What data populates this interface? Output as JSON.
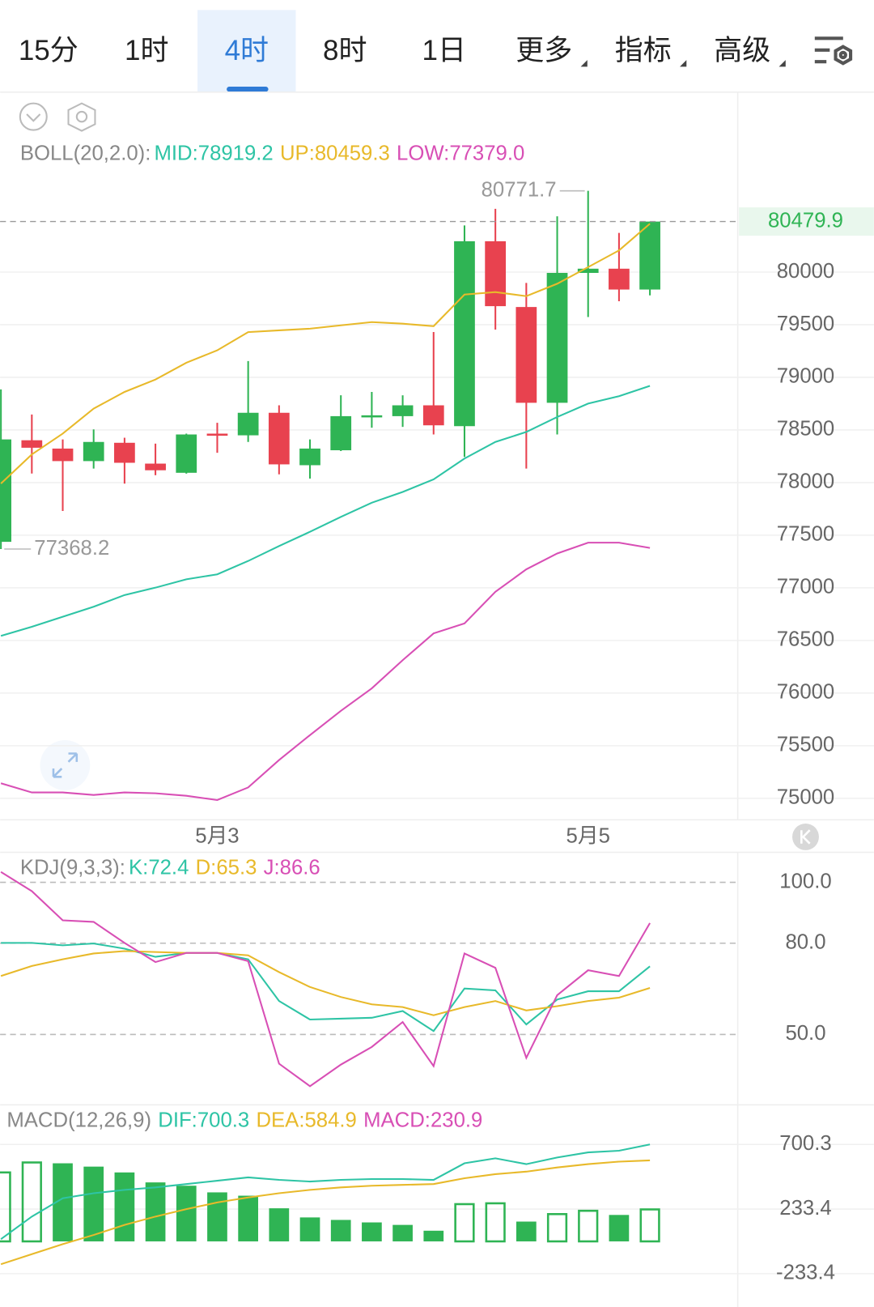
{
  "tabs": [
    "15分",
    "1时",
    "4时",
    "8时",
    "1日",
    "更多",
    "指标",
    "高级"
  ],
  "chart_data": [
    {
      "type": "candlestick",
      "indicator": "BOLL(20,2.0):",
      "categories": [
        null,
        null,
        null,
        null,
        null,
        null,
        null,
        "5月3",
        null,
        null,
        null,
        null,
        null,
        null,
        null,
        null,
        null,
        null,
        null,
        "5月5",
        null,
        null
      ],
      "open": [
        77437,
        78402,
        78323,
        78204,
        78378,
        78180,
        78093,
        78465,
        78449,
        78663,
        78165,
        78307,
        78631,
        78631,
        78734,
        78536,
        80293,
        79668,
        78758,
        79992,
        80032,
        79834
      ],
      "high": [
        78885,
        78647,
        78410,
        78505,
        78426,
        78370,
        78465,
        78568,
        79154,
        78734,
        78410,
        78829,
        78861,
        78829,
        79430,
        80443,
        80601,
        79897,
        80530,
        80771.7,
        80372,
        80480
      ],
      "low": [
        77368.2,
        78086,
        77730,
        78133,
        77990,
        78070,
        78085,
        78283,
        78386,
        78078,
        78038,
        78299,
        78521,
        78529,
        78457,
        78244,
        79454,
        78133,
        78457,
        79573,
        79723,
        79779
      ],
      "close": [
        78410,
        78331,
        78204,
        78386,
        78188,
        78117,
        78457,
        78457,
        78663,
        78173,
        78323,
        78631,
        78639,
        78734,
        78544,
        80293,
        79676,
        78758,
        79992,
        80032,
        79834,
        80479.9
      ],
      "up_color": "#2fb454",
      "down_color": "#e8424f",
      "series": [
        {
          "name": "MID:",
          "color": "#2ec4a5",
          "values": [
            76543,
            76630,
            76725,
            76820,
            76931,
            77002,
            77081,
            77128,
            77255,
            77397,
            77532,
            77674,
            77809,
            77911,
            78030,
            78228,
            78386,
            78481,
            78623,
            78750,
            78821,
            78919.2
          ]
        },
        {
          "name": "UP:",
          "color": "#e8b92a",
          "values": [
            77991,
            78267,
            78465,
            78703,
            78861,
            78979,
            79138,
            79256,
            79430,
            79446,
            79462,
            79494,
            79525,
            79510,
            79486,
            79786,
            79810,
            79771,
            79889,
            80047,
            80206,
            80459.3
          ]
        },
        {
          "name": "LOW:",
          "color": "#d84fb5",
          "values": [
            75143,
            75056,
            75056,
            75032,
            75056,
            75048,
            75024,
            74984,
            75103,
            75364,
            75601,
            75831,
            76045,
            76313,
            76567,
            76662,
            76962,
            77176,
            77326,
            77429,
            77429,
            77379.0
          ],
          "value_labels": [
            null,
            null,
            null,
            null,
            null,
            null,
            null,
            null,
            null,
            null,
            null,
            null,
            null,
            null,
            null,
            null,
            null,
            null,
            null,
            null,
            null,
            "77379.0"
          ]
        }
      ],
      "ylim": [
        74800,
        81690
      ],
      "yticks": [
        75000,
        75500,
        76000,
        76500,
        77000,
        77500,
        78000,
        78500,
        79000,
        79500,
        80000
      ],
      "grid": true
    },
    {
      "type": "line",
      "indicator": "KDJ(9,3,3):",
      "series": [
        {
          "name": "K:",
          "color": "#2ec4a5",
          "values": [
            80.1,
            80.1,
            79.3,
            79.9,
            78.2,
            75.5,
            76.8,
            76.8,
            74.7,
            61.0,
            54.9,
            55.2,
            55.5,
            57.7,
            51.1,
            65.1,
            64.5,
            53.3,
            61.5,
            64.2,
            64.2,
            72.4
          ]
        },
        {
          "name": "D:",
          "color": "#e8b92a",
          "values": [
            69.2,
            72.5,
            74.7,
            76.6,
            77.4,
            77.1,
            76.8,
            76.8,
            76.0,
            70.5,
            65.6,
            62.3,
            59.9,
            59.0,
            56.3,
            59.0,
            61.0,
            57.9,
            59.3,
            61.0,
            62.1,
            65.3
          ]
        },
        {
          "name": "J:",
          "color": "#d84fb5",
          "values": [
            103.4,
            97.1,
            87.5,
            87.0,
            80.1,
            73.8,
            76.8,
            76.8,
            74.1,
            40.4,
            33.0,
            40.1,
            45.9,
            54.1,
            39.6,
            76.6,
            71.9,
            42.3,
            62.9,
            71.1,
            69.2,
            86.6
          ]
        }
      ],
      "ylim": [
        27,
        110
      ],
      "yticks": [
        {
          "value": 100,
          "label": "100.0"
        },
        {
          "value": 80,
          "label": "80.0"
        },
        {
          "value": 50,
          "label": "50.0"
        }
      ],
      "grid": true
    },
    {
      "type": "macd",
      "indicator": "MACD(12,26,9)",
      "series": [
        {
          "name": "DIF:",
          "color": "#2ec4a5",
          "values": [
            16,
            179,
            311,
            348,
            372,
            390,
            414,
            438,
            462,
            444,
            432,
            444,
            450,
            450,
            444,
            564,
            600,
            558,
            606,
            643,
            655,
            700.3
          ]
        },
        {
          "name": "DEA:",
          "color": "#e8b92a",
          "values": [
            -165,
            -92,
            -20,
            46,
            119,
            179,
            233,
            281,
            317,
            348,
            372,
            390,
            402,
            408,
            414,
            456,
            486,
            504,
            534,
            558,
            576,
            584.9
          ]
        }
      ],
      "histogram": {
        "name": "MACD:",
        "color": "#2fb454",
        "legend_color": "#d84fb5",
        "values": [
          498,
          570,
          564,
          540,
          498,
          426,
          402,
          354,
          330,
          239,
          173,
          155,
          137,
          119,
          77,
          269,
          275,
          143,
          197,
          221,
          191,
          230.9
        ]
      },
      "ylim": [
        -474,
        971
      ],
      "yticks": [
        700.3,
        233.4,
        -233.4
      ],
      "grid": true
    }
  ]
}
